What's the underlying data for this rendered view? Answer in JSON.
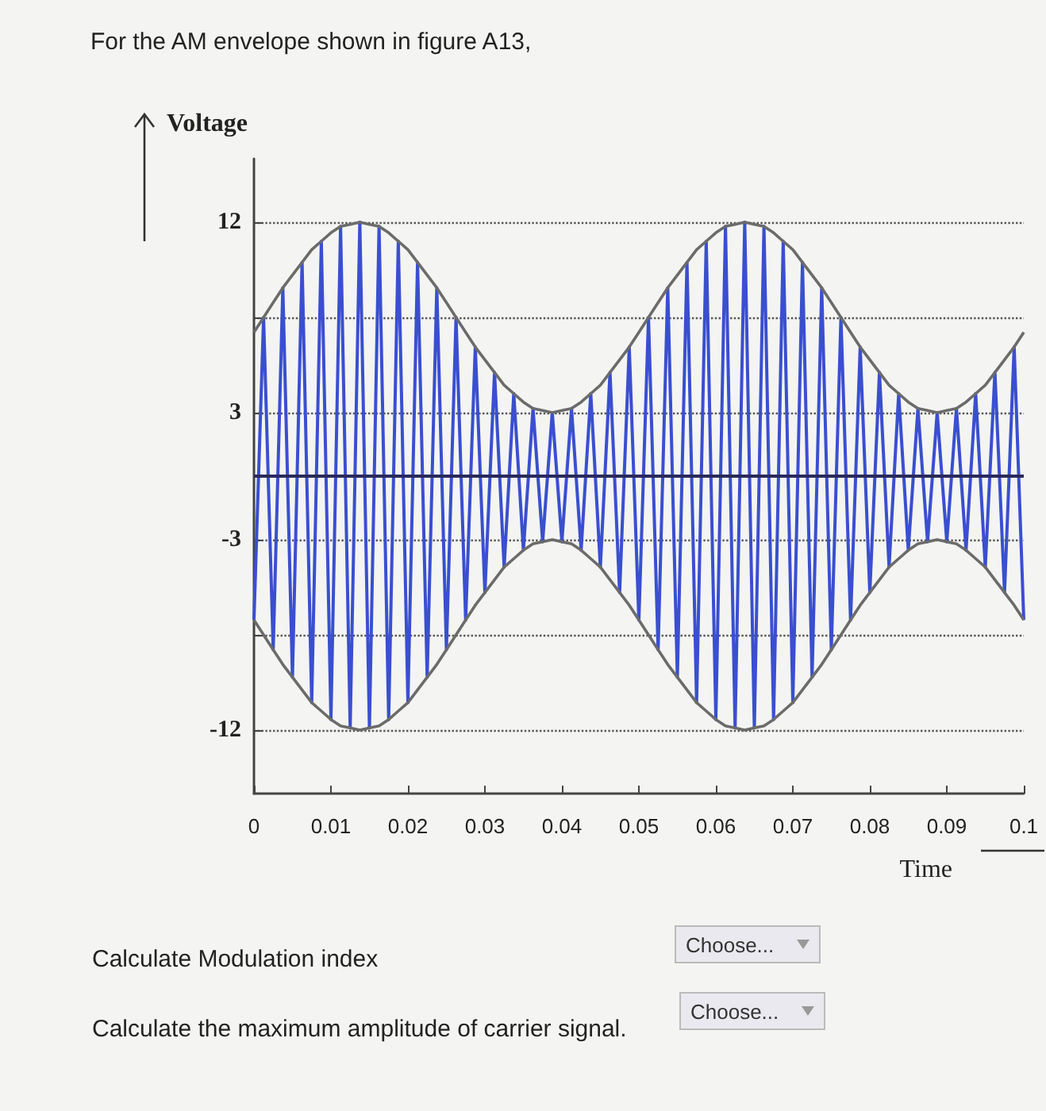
{
  "chart_data": {
    "type": "line",
    "title": "For the AM envelope shown in figure A13,",
    "xlabel": "Time",
    "ylabel": "Voltage",
    "x": [
      0,
      0.00125,
      0.0025,
      0.00375,
      0.005,
      0.00625,
      0.0075,
      0.00875,
      0.01,
      0.01125,
      0.0125,
      0.01375,
      0.015,
      0.01625,
      0.0175,
      0.01875,
      0.02,
      0.02125,
      0.0225,
      0.02375,
      0.025,
      0.02625,
      0.0275,
      0.02875,
      0.03,
      0.03125,
      0.0325,
      0.03375,
      0.035,
      0.03625,
      0.0375,
      0.03875,
      0.04,
      0.04125,
      0.0425,
      0.04375,
      0.045,
      0.04625,
      0.0475,
      0.04875,
      0.05,
      0.05125,
      0.0525,
      0.05375,
      0.055,
      0.05625,
      0.0575,
      0.05875,
      0.06,
      0.06125,
      0.0625,
      0.06375,
      0.065,
      0.06625,
      0.0675,
      0.06875,
      0.07,
      0.07125,
      0.0725,
      0.07375,
      0.075,
      0.07625,
      0.0775,
      0.07875,
      0.08,
      0.08125,
      0.0825,
      0.08375,
      0.085,
      0.08625,
      0.0875,
      0.08875,
      0.09,
      0.09125,
      0.0925,
      0.09375,
      0.095,
      0.09625,
      0.0975,
      0.09875,
      0.1
    ],
    "series": [
      {
        "color": "#3a4fd0",
        "values": [
          -6.8,
          7.5,
          -8.2,
          8.9,
          -9.5,
          10.1,
          -10.7,
          11.1,
          -11.5,
          11.8,
          -11.9,
          12,
          -11.9,
          11.8,
          -11.5,
          11.1,
          -10.7,
          10.1,
          -9.5,
          8.9,
          -8.2,
          7.5,
          -6.8,
          6.1,
          -5.5,
          4.9,
          -4.3,
          3.9,
          -3.5,
          3.2,
          -3.1,
          3.0,
          -3.1,
          3.2,
          -3.5,
          3.9,
          -4.3,
          4.9,
          -5.5,
          6.1,
          -6.8,
          7.5,
          -8.2,
          8.9,
          -9.5,
          10.1,
          -10.7,
          11.1,
          -11.5,
          11.8,
          -11.9,
          12,
          -11.9,
          11.8,
          -11.5,
          11.1,
          -10.7,
          10.1,
          -9.5,
          8.9,
          -8.2,
          7.5,
          -6.8,
          6.1,
          -5.5,
          4.9,
          -4.3,
          3.9,
          -3.5,
          3.2,
          -3.1,
          3.0,
          -3.1,
          3.2,
          -3.5,
          3.9,
          -4.3,
          4.9,
          -5.5,
          6.1,
          -6.8
        ]
      },
      {
        "color": "#6b6b6b",
        "values": [
          6.8,
          7.5,
          8.2,
          8.9,
          9.5,
          10.1,
          10.7,
          11.1,
          11.5,
          11.8,
          11.9,
          12,
          11.9,
          11.8,
          11.5,
          11.1,
          10.7,
          10.1,
          9.5,
          8.9,
          8.2,
          7.5,
          6.8,
          6.1,
          5.5,
          4.9,
          4.3,
          3.9,
          3.5,
          3.2,
          3.1,
          3.0,
          3.1,
          3.2,
          3.5,
          3.9,
          4.3,
          4.9,
          5.5,
          6.1,
          6.8,
          7.5,
          8.2,
          8.9,
          9.5,
          10.1,
          10.7,
          11.1,
          11.5,
          11.8,
          11.9,
          12,
          11.9,
          11.8,
          11.5,
          11.1,
          10.7,
          10.1,
          9.5,
          8.9,
          8.2,
          7.5,
          6.8,
          6.1,
          5.5,
          4.9,
          4.3,
          3.9,
          3.5,
          3.2,
          3.1,
          3.0,
          3.1,
          3.2,
          3.5,
          3.9,
          4.3,
          4.9,
          5.5,
          6.1,
          6.8
        ]
      },
      {
        "color": "#6b6b6b",
        "values": [
          -6.8,
          -7.5,
          -8.2,
          -8.9,
          -9.5,
          -10.1,
          -10.7,
          -11.1,
          -11.5,
          -11.8,
          -11.9,
          -12,
          -11.9,
          -11.8,
          -11.5,
          -11.1,
          -10.7,
          -10.1,
          -9.5,
          -8.9,
          -8.2,
          -7.5,
          -6.8,
          -6.1,
          -5.5,
          -4.9,
          -4.3,
          -3.9,
          -3.5,
          -3.2,
          -3.1,
          -3.0,
          -3.1,
          -3.2,
          -3.5,
          -3.9,
          -4.3,
          -4.9,
          -5.5,
          -6.1,
          -6.8,
          -7.5,
          -8.2,
          -8.9,
          -9.5,
          -10.1,
          -10.7,
          -11.1,
          -11.5,
          -11.8,
          -11.9,
          -12,
          -11.9,
          -11.8,
          -11.5,
          -11.1,
          -10.7,
          -10.1,
          -9.5,
          -8.9,
          -8.2,
          -7.5,
          -6.8,
          -6.1,
          -5.5,
          -4.9,
          -4.3,
          -3.9,
          -3.5,
          -3.2,
          -3.1,
          -3.0,
          -3.1,
          -3.2,
          -3.5,
          -3.9,
          -4.3,
          -4.9,
          -5.5,
          -6.1,
          -6.8
        ]
      }
    ],
    "xlim": [
      0,
      0.1
    ],
    "xticks": [
      0,
      0.01,
      0.02,
      0.03,
      0.04,
      0.05,
      0.06,
      0.07,
      0.08,
      0.09,
      0.1
    ],
    "ylim": [
      -15,
      15
    ],
    "yticks": [
      -12,
      {
        "value": -7.5,
        "label": null
      },
      -3,
      3,
      {
        "value": 7.5,
        "label": null
      },
      12
    ],
    "grid": "y",
    "ref_lines": [
      {
        "axis": "y",
        "value": 0,
        "color": "#2a2a5a"
      }
    ],
    "annotations": [
      "Calculate Modulation index",
      "Choose...",
      "Calculate the maximum amplitude of carrier signal.",
      "Choose..."
    ]
  }
}
